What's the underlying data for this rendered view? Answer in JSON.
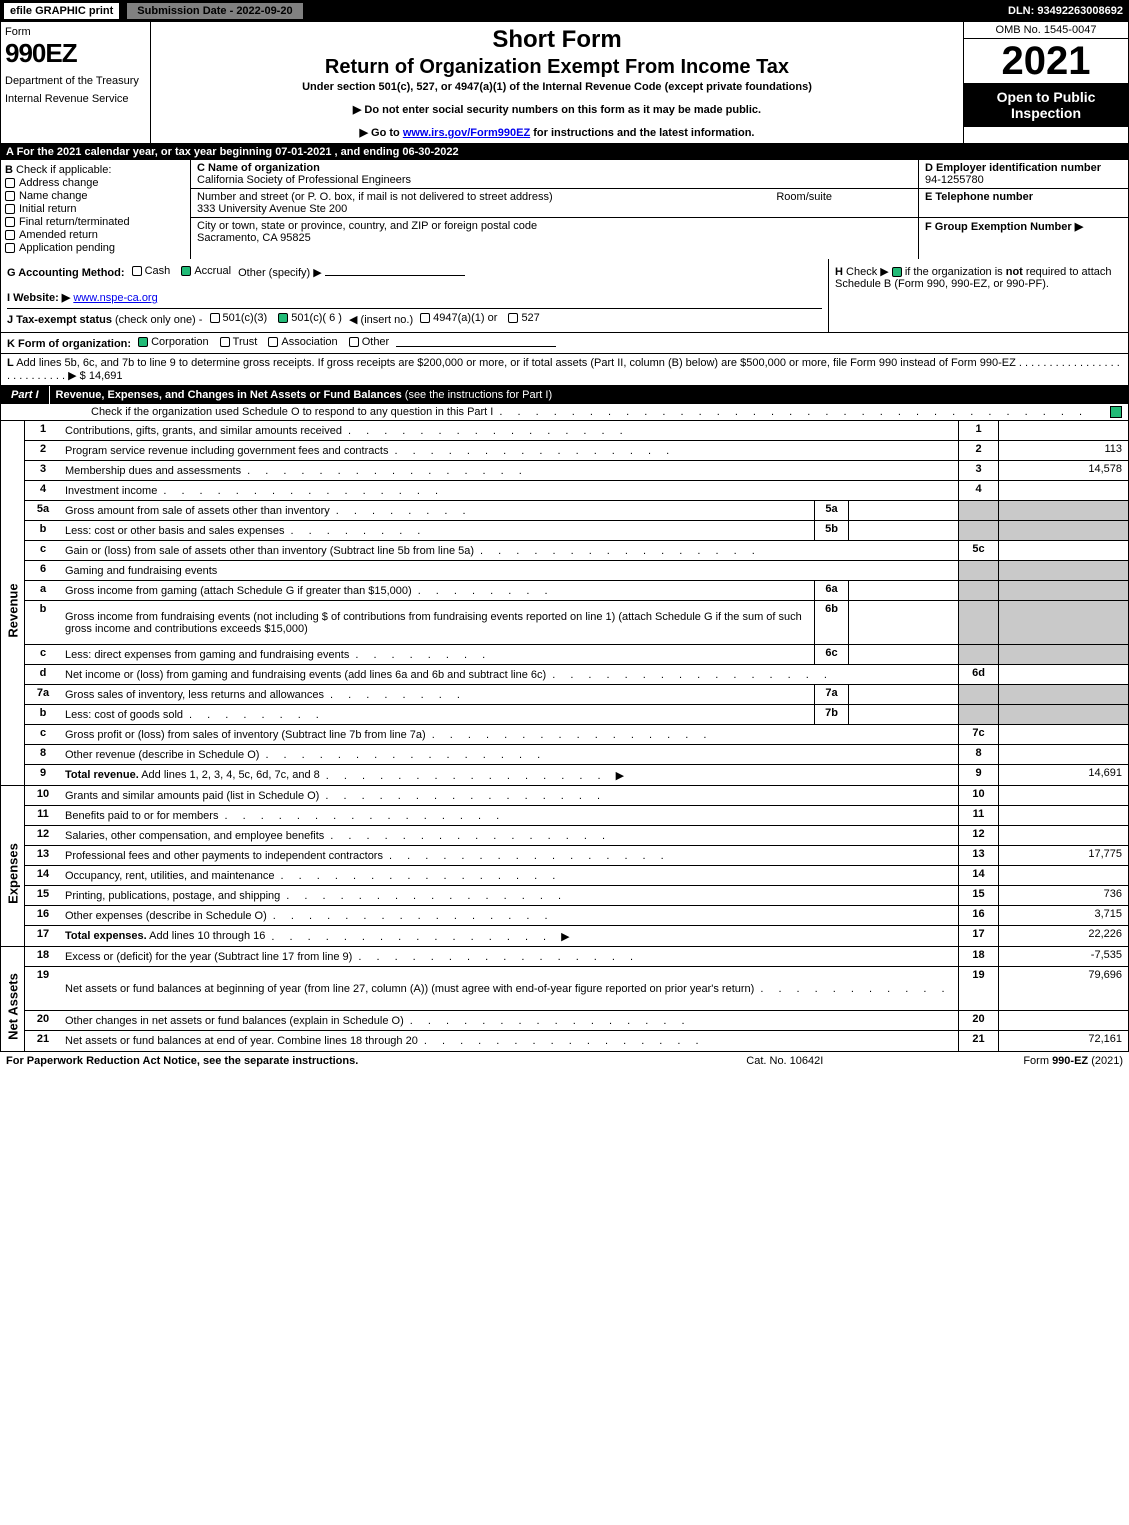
{
  "header": {
    "efile": "efile GRAPHIC print",
    "submission": "Submission Date - 2022-09-20",
    "dln": "DLN: 93492263008692"
  },
  "topLeft": {
    "formWord": "Form",
    "formNum": "990EZ",
    "dept": "Department of the Treasury",
    "irs": "Internal Revenue Service"
  },
  "topMid": {
    "short": "Short Form",
    "title2": "Return of Organization Exempt From Income Tax",
    "sub": "Under section 501(c), 527, or 4947(a)(1) of the Internal Revenue Code (except private foundations)",
    "note1": "▶ Do not enter social security numbers on this form as it may be made public.",
    "note2pre": "▶ Go to ",
    "note2link": "www.irs.gov/Form990EZ",
    "note2post": " for instructions and the latest information."
  },
  "topRight": {
    "omb": "OMB No. 1545-0047",
    "year": "2021",
    "open": "Open to Public Inspection"
  },
  "rowA": "A  For the 2021 calendar year, or tax year beginning 07-01-2021 , and ending 06-30-2022",
  "colB": {
    "lab": "B",
    "check": "Check if applicable:",
    "items": [
      "Address change",
      "Name change",
      "Initial return",
      "Final return/terminated",
      "Amended return",
      "Application pending"
    ]
  },
  "colC": {
    "nameLab": "C Name of organization",
    "nameVal": "California Society of Professional Engineers",
    "addrLab": "Number and street (or P. O. box, if mail is not delivered to street address)",
    "roomLab": "Room/suite",
    "addrVal": "333 University Avenue Ste 200",
    "cityLab": "City or town, state or province, country, and ZIP or foreign postal code",
    "cityVal": "Sacramento, CA  95825"
  },
  "colRight": {
    "dLab": "D Employer identification number",
    "dVal": "94-1255780",
    "eLab": "E Telephone number",
    "fLab": "F Group Exemption Number   ▶"
  },
  "secG": {
    "lab": "G Accounting Method:",
    "cash": "Cash",
    "accrual": "Accrual",
    "other": "Other (specify) ▶",
    "iLab": "I Website: ▶",
    "iVal": "www.nspe-ca.org",
    "jLab": "J Tax-exempt status",
    "jSm": "(check only one) -",
    "j1": "501(c)(3)",
    "j2pre": "501(c)( 6 )",
    "j2post": "◀ (insert no.)",
    "j3": "4947(a)(1) or",
    "j4": "527"
  },
  "secH": {
    "lab": "H",
    "txt1": "Check ▶",
    "txt2": "if the organization is ",
    "not": "not",
    "txt3": " required to attach Schedule B (Form 990, 990-EZ, or 990-PF)."
  },
  "rowK": {
    "lab": "K Form of organization:",
    "corp": "Corporation",
    "trust": "Trust",
    "assoc": "Association",
    "other": "Other"
  },
  "rowL": {
    "lab": "L",
    "txt": "Add lines 5b, 6c, and 7b to line 9 to determine gross receipts. If gross receipts are $200,000 or more, or if total assets (Part II, column (B) below) are $500,000 or more, file Form 990 instead of Form 990-EZ",
    "dots": ". . . . . . . . . . . . . . . . . . . . . . . . . . .",
    "arrow": "▶ $",
    "amt": "14,691"
  },
  "part1": {
    "lab": "Part I",
    "title": "Revenue, Expenses, and Changes in Net Assets or Fund Balances",
    "sub": "(see the instructions for Part I)",
    "check": "Check if the organization used Schedule O to respond to any question in this Part I"
  },
  "dots": ". . . . . . . . . . . . . . . . . . . . . . . . . . . . . . . . .",
  "dotsMed": ". . . . . . . . . . . . . . . .",
  "dotsShort": ". . . . . . . .",
  "sideLabels": {
    "rev": "Revenue",
    "exp": "Expenses",
    "net": "Net Assets"
  },
  "revenue": [
    {
      "n": "1",
      "d": "Contributions, gifts, grants, and similar amounts received",
      "rn": "1",
      "rv": ""
    },
    {
      "n": "2",
      "d": "Program service revenue including government fees and contracts",
      "rn": "2",
      "rv": "113"
    },
    {
      "n": "3",
      "d": "Membership dues and assessments",
      "rn": "3",
      "rv": "14,578"
    },
    {
      "n": "4",
      "d": "Investment income",
      "rn": "4",
      "rv": ""
    },
    {
      "n": "5a",
      "d": "Gross amount from sale of assets other than inventory",
      "sbl": "5a",
      "shade": true
    },
    {
      "n": "b",
      "d": "Less: cost or other basis and sales expenses",
      "sbl": "5b",
      "shade": true
    },
    {
      "n": "c",
      "d": "Gain or (loss) from sale of assets other than inventory (Subtract line 5b from line 5a)",
      "rn": "5c",
      "rv": ""
    },
    {
      "n": "6",
      "d": "Gaming and fundraising events",
      "shadeAll": true
    },
    {
      "n": "a",
      "d": "Gross income from gaming (attach Schedule G if greater than $15,000)",
      "sbl": "6a",
      "shade": true
    },
    {
      "n": "b",
      "d": "Gross income from fundraising events (not including $                    of contributions from fundraising events reported on line 1) (attach Schedule G if the sum of such gross income and contributions exceeds $15,000)",
      "sbl": "6b",
      "shade": true,
      "tall": true
    },
    {
      "n": "c",
      "d": "Less: direct expenses from gaming and fundraising events",
      "sbl": "6c",
      "shade": true
    },
    {
      "n": "d",
      "d": "Net income or (loss) from gaming and fundraising events (add lines 6a and 6b and subtract line 6c)",
      "rn": "6d",
      "rv": ""
    },
    {
      "n": "7a",
      "d": "Gross sales of inventory, less returns and allowances",
      "sbl": "7a",
      "shade": true
    },
    {
      "n": "b",
      "d": "Less: cost of goods sold",
      "sbl": "7b",
      "shade": true
    },
    {
      "n": "c",
      "d": "Gross profit or (loss) from sales of inventory (Subtract line 7b from line 7a)",
      "rn": "7c",
      "rv": ""
    },
    {
      "n": "8",
      "d": "Other revenue (describe in Schedule O)",
      "rn": "8",
      "rv": ""
    },
    {
      "n": "9",
      "d": "Total revenue. Add lines 1, 2, 3, 4, 5c, 6d, 7c, and 8",
      "rn": "9",
      "rv": "14,691",
      "bold": true,
      "arrow": true
    }
  ],
  "expenses": [
    {
      "n": "10",
      "d": "Grants and similar amounts paid (list in Schedule O)",
      "rn": "10",
      "rv": ""
    },
    {
      "n": "11",
      "d": "Benefits paid to or for members",
      "rn": "11",
      "rv": ""
    },
    {
      "n": "12",
      "d": "Salaries, other compensation, and employee benefits",
      "rn": "12",
      "rv": ""
    },
    {
      "n": "13",
      "d": "Professional fees and other payments to independent contractors",
      "rn": "13",
      "rv": "17,775"
    },
    {
      "n": "14",
      "d": "Occupancy, rent, utilities, and maintenance",
      "rn": "14",
      "rv": ""
    },
    {
      "n": "15",
      "d": "Printing, publications, postage, and shipping",
      "rn": "15",
      "rv": "736"
    },
    {
      "n": "16",
      "d": "Other expenses (describe in Schedule O)",
      "rn": "16",
      "rv": "3,715"
    },
    {
      "n": "17",
      "d": "Total expenses. Add lines 10 through 16",
      "rn": "17",
      "rv": "22,226",
      "bold": true,
      "arrow": true
    }
  ],
  "netassets": [
    {
      "n": "18",
      "d": "Excess or (deficit) for the year (Subtract line 17 from line 9)",
      "rn": "18",
      "rv": "-7,535"
    },
    {
      "n": "19",
      "d": "Net assets or fund balances at beginning of year (from line 27, column (A)) (must agree with end-of-year figure reported on prior year's return)",
      "rn": "19",
      "rv": "79,696",
      "tall": true
    },
    {
      "n": "20",
      "d": "Other changes in net assets or fund balances (explain in Schedule O)",
      "rn": "20",
      "rv": ""
    },
    {
      "n": "21",
      "d": "Net assets or fund balances at end of year. Combine lines 18 through 20",
      "rn": "21",
      "rv": "72,161"
    }
  ],
  "footer": {
    "l": "For Paperwork Reduction Act Notice, see the separate instructions.",
    "c": "Cat. No. 10642I",
    "rPre": "Form ",
    "rForm": "990-EZ",
    "rPost": " (2021)"
  }
}
